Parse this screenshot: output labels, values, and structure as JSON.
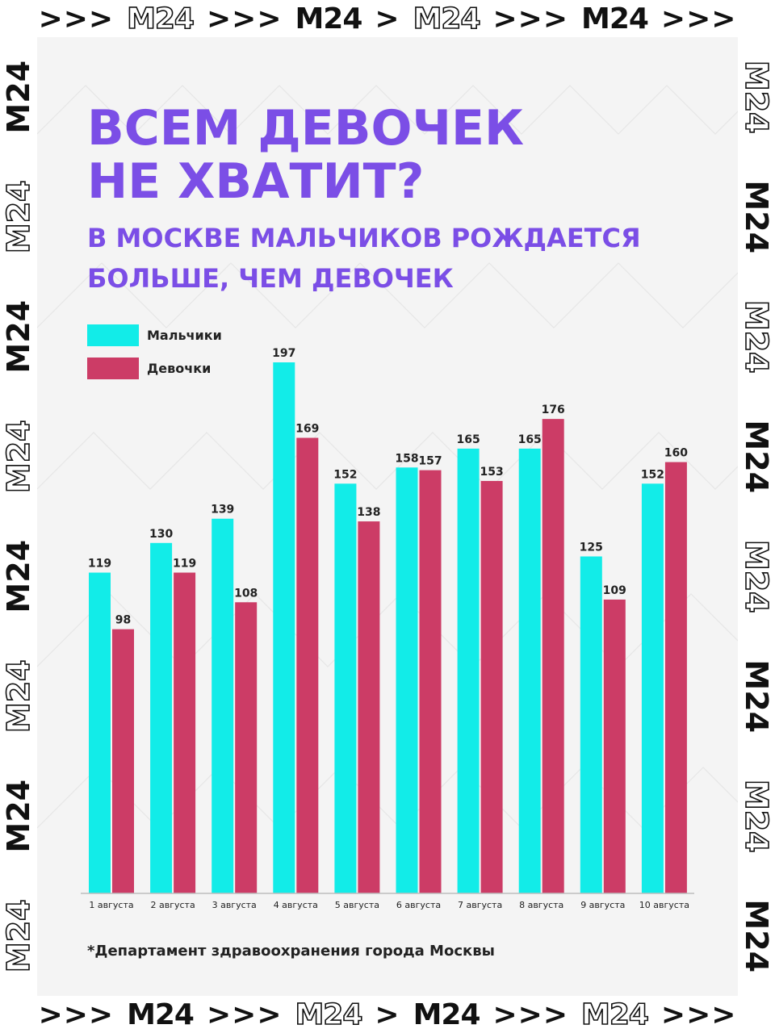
{
  "frame": {
    "brand": "M24",
    "arrow_triple": ">>>",
    "arrow_single": ">"
  },
  "header": {
    "title_line1": "ВСЕМ ДЕВОЧЕК",
    "title_line2": "НЕ ХВАТИТ?",
    "subtitle_line1": "В МОСКВЕ МАЛЬЧИКОВ РОЖДАЕТСЯ",
    "subtitle_line2": "БОЛЬШЕ, ЧЕМ ДЕВОЧЕК"
  },
  "colors": {
    "accent": "#7b4ee6",
    "boys": "#12ece8",
    "girls": "#cc3c66",
    "panel": "#f4f4f4"
  },
  "legend": {
    "items": [
      {
        "label": "Мальчики",
        "color": "#12ece8"
      },
      {
        "label": "Девочки",
        "color": "#cc3c66"
      }
    ]
  },
  "chart_data": {
    "type": "bar",
    "categories": [
      "1 августа",
      "2 августа",
      "3 августа",
      "4 августа",
      "5 августа",
      "6 августа",
      "7 августа",
      "8 августа",
      "9 августа",
      "10 августа"
    ],
    "series": [
      {
        "name": "Мальчики",
        "values": [
          119,
          130,
          139,
          197,
          152,
          158,
          165,
          165,
          125,
          152
        ]
      },
      {
        "name": "Девочки",
        "values": [
          98,
          119,
          108,
          169,
          138,
          157,
          153,
          176,
          109,
          160
        ]
      }
    ],
    "ylim": [
      0,
      197
    ],
    "grid": false,
    "legend_position": "top-left",
    "data_labels": true
  },
  "footer": {
    "source": "*Департамент здравоохранения города Москвы"
  }
}
